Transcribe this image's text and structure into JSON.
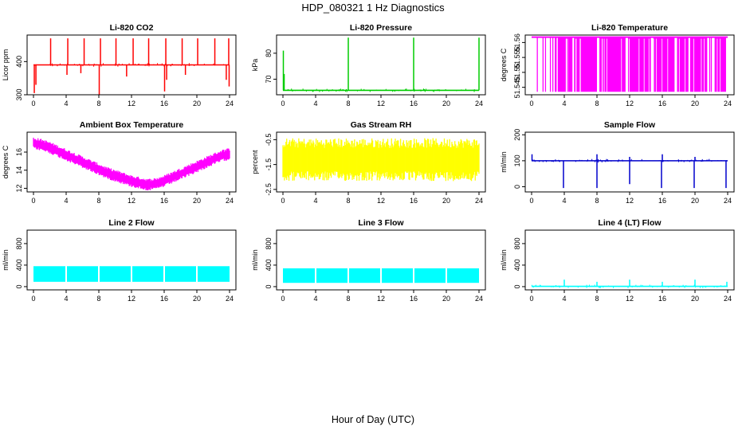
{
  "page_title": "HDP_080321  1 Hz Diagnostics",
  "x_axis_title": "Hour of Day (UTC)",
  "colors": {
    "red": "#ff0000",
    "green": "#00cc00",
    "magenta": "#ff00ff",
    "yellow": "#ffff00",
    "blue": "#0000cc",
    "cyan": "#00ffff"
  },
  "chart_data": [
    {
      "type": "line",
      "title": "Li-820 CO2",
      "ylabel": "Licor ppm",
      "xlim": [
        0,
        24
      ],
      "xticks": [
        0,
        4,
        8,
        12,
        16,
        20,
        24
      ],
      "ylim": [
        300,
        480
      ],
      "yticks": [
        300,
        400
      ],
      "color": "#ff0000",
      "series": [
        {
          "pattern": "baseline_with_spikes",
          "x": [
            0,
            24
          ],
          "baseline": 390,
          "spikes_up": [
            [
              2.1,
              470
            ],
            [
              4.2,
              470
            ],
            [
              6.2,
              470
            ],
            [
              8.2,
              470
            ],
            [
              10.1,
              470
            ],
            [
              12.2,
              470
            ],
            [
              14.1,
              470
            ],
            [
              16.2,
              470
            ],
            [
              18.2,
              470
            ],
            [
              20.1,
              470
            ],
            [
              22.2,
              470
            ],
            [
              23.9,
              470
            ]
          ],
          "spikes_down": [
            [
              0.1,
              305
            ],
            [
              0.3,
              330
            ],
            [
              4.1,
              360
            ],
            [
              5.8,
              365
            ],
            [
              8.05,
              300
            ],
            [
              11.4,
              355
            ],
            [
              16.05,
              310
            ],
            [
              16.3,
              345
            ],
            [
              18.6,
              360
            ],
            [
              23.6,
              345
            ],
            [
              23.95,
              325
            ]
          ]
        }
      ]
    },
    {
      "type": "line",
      "title": "Li-820 Pressure",
      "ylabel": "kPa",
      "xlim": [
        0,
        24
      ],
      "xticks": [
        0,
        4,
        8,
        12,
        16,
        20,
        24
      ],
      "ylim": [
        64,
        87
      ],
      "yticks": [
        70,
        80
      ],
      "color": "#00cc00",
      "series": [
        {
          "pattern": "baseline_with_spikes",
          "x": [
            0,
            24
          ],
          "baseline": 65.7,
          "spikes_up": [
            [
              0.05,
              81
            ],
            [
              0.15,
              72
            ],
            [
              8.0,
              86
            ],
            [
              16.0,
              86
            ],
            [
              24.0,
              86
            ]
          ],
          "spikes_down": []
        }
      ]
    },
    {
      "type": "line",
      "title": "Li-820 Temperature",
      "ylabel": "degrees C",
      "xlim": [
        0,
        24
      ],
      "xticks": [
        0,
        4,
        8,
        12,
        16,
        20,
        24
      ],
      "ylim": [
        51.5425,
        51.5625
      ],
      "yticks": [
        51.545,
        51.55,
        51.555,
        51.56
      ],
      "color": "#ff00ff",
      "series": [
        {
          "pattern": "two_level_switching",
          "x": [
            0,
            24
          ],
          "high": 51.5618,
          "low": 51.5435,
          "dense_low_intervals": [
            [
              3.2,
              5.0
            ],
            [
              5.2,
              8.0
            ],
            [
              8.3,
              11.5
            ],
            [
              11.8,
              14.6
            ],
            [
              14.9,
              17.5
            ],
            [
              17.8,
              19.2
            ],
            [
              19.4,
              21.5
            ],
            [
              22.4,
              23.8
            ]
          ],
          "sparse_low_times": [
            0.7,
            1.4,
            1.7,
            2.3,
            2.6,
            2.9,
            3.0,
            21.8,
            22.0
          ]
        }
      ]
    },
    {
      "type": "area",
      "title": "Ambient Box Temperature",
      "ylabel": "degrees C",
      "xlim": [
        0,
        24
      ],
      "xticks": [
        0,
        4,
        8,
        12,
        16,
        20,
        24
      ],
      "ylim": [
        11.6,
        18.2
      ],
      "yticks": [
        12,
        14,
        16
      ],
      "color": "#ff00ff",
      "series": [
        {
          "pattern": "noisy_band",
          "x": [
            0,
            1,
            2,
            3,
            4,
            5,
            6,
            7,
            8,
            9,
            10,
            11,
            12,
            13,
            14,
            15,
            16,
            17,
            18,
            19,
            20,
            21,
            22,
            23,
            24
          ],
          "center": [
            17.0,
            16.8,
            16.5,
            16.1,
            15.7,
            15.3,
            14.9,
            14.5,
            14.1,
            13.7,
            13.4,
            13.1,
            12.8,
            12.6,
            12.4,
            12.5,
            12.8,
            13.2,
            13.6,
            14.0,
            14.4,
            14.8,
            15.2,
            15.6,
            15.8
          ],
          "halfwidth": 0.55
        }
      ]
    },
    {
      "type": "area",
      "title": "Gas Stream RH",
      "ylabel": "percent",
      "xlim": [
        0,
        24
      ],
      "xticks": [
        0,
        4,
        8,
        12,
        16,
        20,
        24
      ],
      "ylim": [
        -2.6,
        -0.2
      ],
      "yticks": [
        -2.5,
        -1.5,
        -0.5
      ],
      "color": "#ffff00",
      "series": [
        {
          "pattern": "noisy_band",
          "x": [
            0,
            24
          ],
          "center": [
            -1.3,
            -1.3
          ],
          "halfwidth": 0.72
        }
      ]
    },
    {
      "type": "line",
      "title": "Sample Flow",
      "ylabel": "ml/min",
      "xlim": [
        0,
        24
      ],
      "xticks": [
        0,
        4,
        8,
        12,
        16,
        20,
        24
      ],
      "ylim": [
        -20,
        210
      ],
      "yticks": [
        0,
        100,
        200
      ],
      "color": "#0000cc",
      "series": [
        {
          "pattern": "baseline_with_spikes",
          "x": [
            0,
            24
          ],
          "baseline": 100,
          "spikes_up": [
            [
              0.05,
              125
            ],
            [
              8.0,
              125
            ],
            [
              12.0,
              115
            ],
            [
              16.0,
              125
            ],
            [
              20.0,
              115
            ]
          ],
          "spikes_down": [
            [
              3.9,
              -5
            ],
            [
              8.0,
              -5
            ],
            [
              12.0,
              10
            ],
            [
              15.9,
              -5
            ],
            [
              19.9,
              -5
            ],
            [
              23.8,
              -5
            ]
          ]
        }
      ]
    },
    {
      "type": "area",
      "title": "Line 2 Flow",
      "ylabel": "ml/min",
      "xlim": [
        0,
        24
      ],
      "xticks": [
        0,
        4,
        8,
        12,
        16,
        20,
        24
      ],
      "ylim": [
        -60,
        1050
      ],
      "yticks": [
        0,
        400,
        800
      ],
      "color": "#00ffff",
      "series": [
        {
          "pattern": "band_with_gaps",
          "x": [
            0,
            24
          ],
          "low": 90,
          "high": 380,
          "gaps": [
            4.0,
            8.0,
            12.0,
            16.0,
            20.0
          ]
        }
      ]
    },
    {
      "type": "area",
      "title": "Line 3 Flow",
      "ylabel": "ml/min",
      "xlim": [
        0,
        24
      ],
      "xticks": [
        0,
        4,
        8,
        12,
        16,
        20,
        24
      ],
      "ylim": [
        -60,
        1050
      ],
      "yticks": [
        0,
        400,
        800
      ],
      "color": "#00ffff",
      "series": [
        {
          "pattern": "band_with_gaps",
          "x": [
            0,
            24
          ],
          "low": 70,
          "high": 340,
          "gaps": [
            4.0,
            8.0,
            12.0,
            16.0,
            20.0
          ]
        }
      ]
    },
    {
      "type": "line",
      "title": "Line 4 (LT) Flow",
      "ylabel": "ml/min",
      "xlim": [
        0,
        24
      ],
      "xticks": [
        0,
        4,
        8,
        12,
        16,
        20,
        24
      ],
      "ylim": [
        -60,
        1050
      ],
      "yticks": [
        0,
        400,
        800
      ],
      "color": "#00ffff",
      "series": [
        {
          "pattern": "baseline_with_spikes",
          "x": [
            0,
            24
          ],
          "baseline": 5,
          "spikes_up": [
            [
              4.0,
              130
            ],
            [
              8.0,
              90
            ],
            [
              12.0,
              130
            ],
            [
              16.0,
              90
            ],
            [
              20.0,
              130
            ],
            [
              23.9,
              90
            ]
          ],
          "spikes_down": []
        }
      ]
    }
  ]
}
